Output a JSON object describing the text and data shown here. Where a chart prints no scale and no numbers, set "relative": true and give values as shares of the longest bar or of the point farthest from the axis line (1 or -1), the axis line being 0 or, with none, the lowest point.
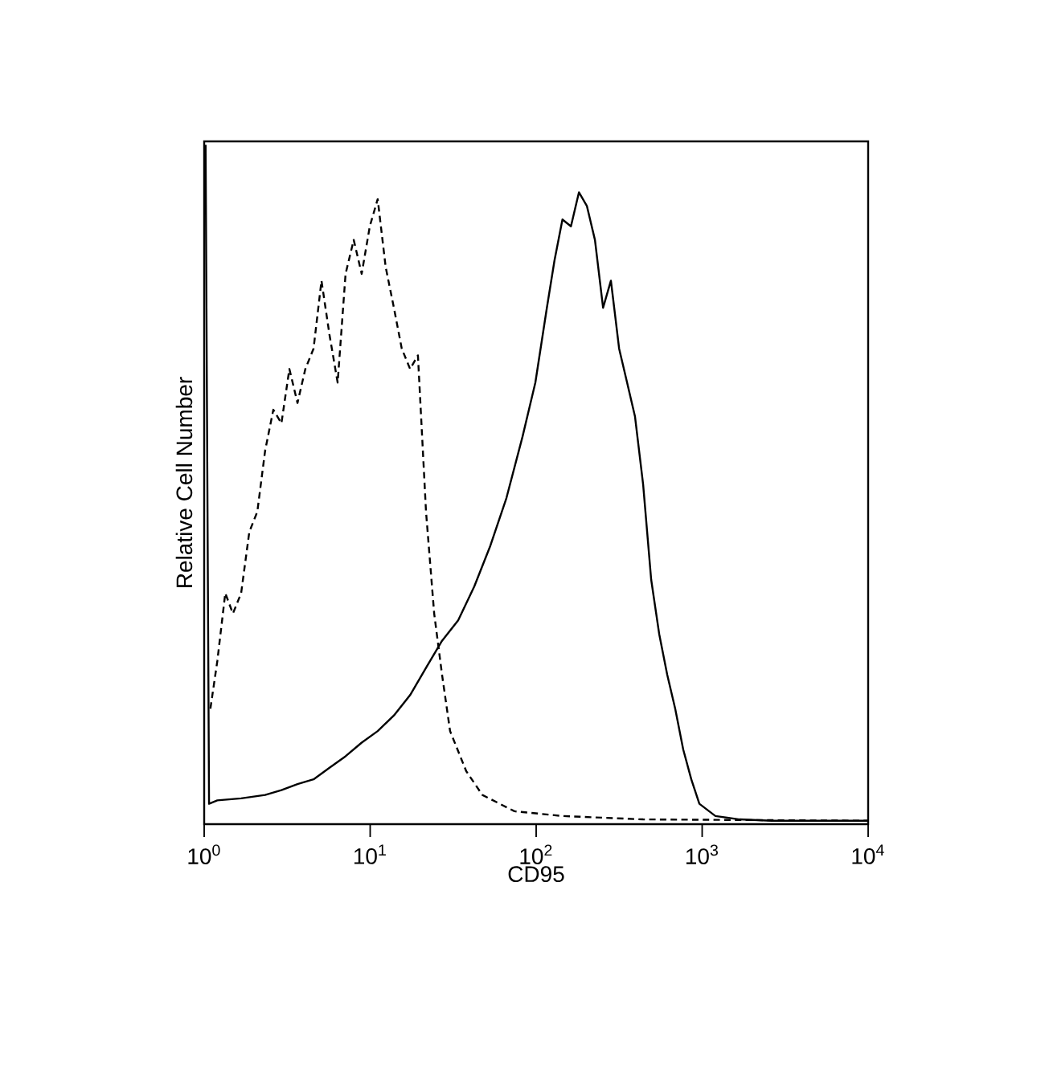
{
  "chart_data": {
    "type": "line",
    "xlabel": "CD95",
    "ylabel": "Relative Cell Number",
    "relative": true,
    "log": "x",
    "xlim": [
      1,
      10000
    ],
    "xticks": [
      {
        "value": 1,
        "label": "10$^{0}$"
      },
      {
        "value": 10,
        "label": "10$^{1}$"
      },
      {
        "value": 100,
        "label": "10$^{2}$"
      },
      {
        "value": 1000,
        "label": "10$^{3}$"
      },
      {
        "value": 10000,
        "label": "10$^{4}$"
      }
    ],
    "series": [
      {
        "color": "#000000",
        "line_style": "dashed",
        "x": [
          1.09,
          1.2,
          1.34,
          1.49,
          1.67,
          1.87,
          2.09,
          2.33,
          2.61,
          2.92,
          3.26,
          3.65,
          4.07,
          4.56,
          5.09,
          5.69,
          6.37,
          7.11,
          7.96,
          8.89,
          9.95,
          11.1,
          12.4,
          13.9,
          15.5,
          17.4,
          19.4,
          21.7,
          24.3,
          27.1,
          30.3,
          37.9,
          47.4,
          74.0,
          144,
          441,
          10000
        ],
        "values": [
          0.17,
          0.24,
          0.34,
          0.31,
          0.34,
          0.43,
          0.46,
          0.55,
          0.61,
          0.59,
          0.67,
          0.62,
          0.67,
          0.7,
          0.8,
          0.72,
          0.65,
          0.81,
          0.86,
          0.81,
          0.88,
          0.92,
          0.82,
          0.76,
          0.7,
          0.67,
          0.69,
          0.46,
          0.31,
          0.22,
          0.137,
          0.078,
          0.043,
          0.019,
          0.012,
          0.007,
          0.005
        ]
      },
      {
        "color": "#000000",
        "line_style": "solid",
        "x": [
          1.02,
          1.07,
          1.2,
          1.67,
          2.33,
          2.92,
          3.65,
          4.56,
          5.69,
          7.11,
          8.89,
          11.1,
          13.9,
          17.4,
          21.7,
          27.1,
          33.9,
          42.4,
          53.0,
          66.2,
          82.7,
          98.9,
          116,
          129,
          144,
          162,
          181,
          202,
          226,
          253,
          282,
          316,
          353,
          394,
          441,
          493,
          551,
          616,
          688,
          769,
          860,
          962,
          1202,
          1680,
          2624,
          10000
        ],
        "values": [
          1.0,
          0.03,
          0.035,
          0.038,
          0.043,
          0.05,
          0.059,
          0.066,
          0.083,
          0.1,
          0.12,
          0.137,
          0.16,
          0.19,
          0.23,
          0.27,
          0.3,
          0.35,
          0.41,
          0.48,
          0.57,
          0.65,
          0.76,
          0.83,
          0.89,
          0.88,
          0.93,
          0.91,
          0.86,
          0.76,
          0.8,
          0.7,
          0.65,
          0.6,
          0.5,
          0.36,
          0.28,
          0.22,
          0.17,
          0.11,
          0.066,
          0.03,
          0.012,
          0.007,
          0.005,
          0.005
        ]
      }
    ]
  }
}
